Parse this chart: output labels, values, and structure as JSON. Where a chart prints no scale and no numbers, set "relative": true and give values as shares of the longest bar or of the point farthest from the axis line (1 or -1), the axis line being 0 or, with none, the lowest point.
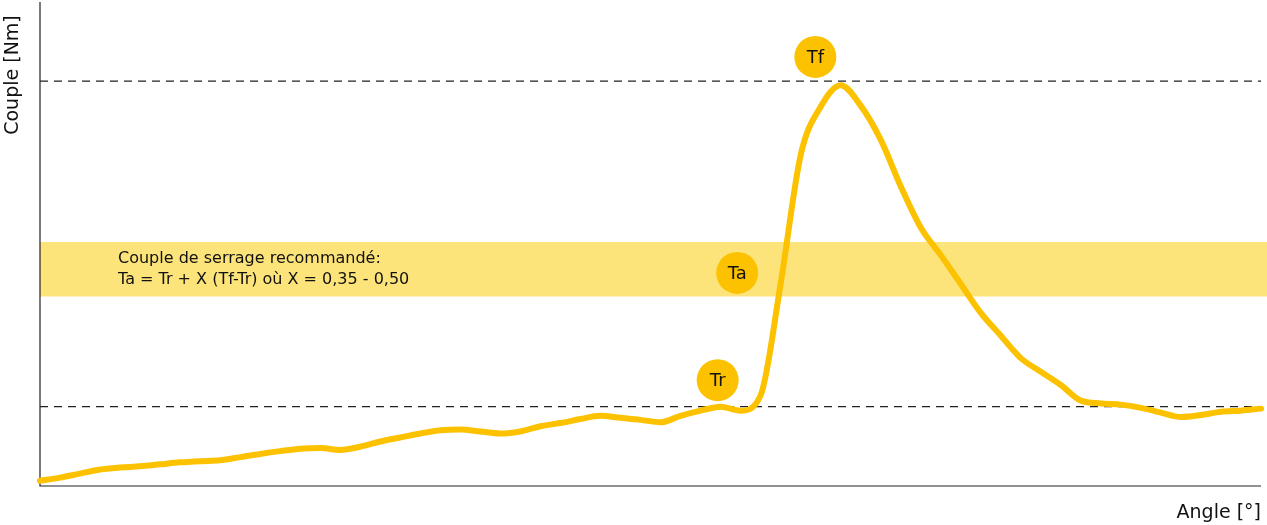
{
  "chart_data": {
    "type": "line",
    "relative": true,
    "xlabel": "Angle [°]",
    "ylabel": "Couple [Nm]",
    "legend": false,
    "marker": "none",
    "line_style": "solid",
    "categories": [
      null,
      null,
      null,
      null,
      null,
      null,
      null,
      null,
      null,
      null,
      null,
      null,
      null,
      null,
      null,
      null,
      null,
      null,
      null,
      null,
      null,
      null,
      null,
      null,
      null,
      null,
      null,
      null,
      null,
      null,
      null,
      null,
      null,
      null,
      null,
      null,
      null,
      null,
      null,
      null,
      null,
      null,
      null,
      null,
      null,
      null,
      null,
      null,
      null,
      null,
      null,
      null,
      null,
      null,
      null,
      null,
      null,
      null,
      null,
      null,
      null,
      null
    ],
    "series": [
      {
        "color": "#fcc200",
        "values": [
          0.013,
          0.021,
          0.031,
          0.041,
          0.046,
          0.049,
          0.054,
          0.059,
          0.062,
          0.064,
          0.072,
          0.08,
          0.087,
          0.093,
          0.095,
          0.09,
          0.098,
          0.111,
          0.121,
          0.131,
          0.139,
          0.141,
          0.136,
          0.131,
          0.136,
          0.149,
          0.157,
          0.167,
          0.175,
          0.17,
          0.165,
          0.159,
          0.175,
          0.188,
          0.198,
          0.188,
          0.226,
          0.504,
          0.825,
          0.946,
          1,
          0.949,
          0.864,
          0.748,
          0.645,
          0.576,
          0.504,
          0.432,
          0.375,
          0.319,
          0.285,
          0.252,
          0.213,
          0.206,
          0.203,
          0.195,
          0.183,
          0.172,
          0.177,
          0.185,
          0.188,
          0.193
        ]
      }
    ],
    "ref_lines": [
      {
        "axis": "y",
        "value": 1.01,
        "line_style": "dashed",
        "color": "#222222"
      },
      {
        "axis": "y",
        "value": 0.198,
        "line_style": "dashed",
        "color": "#222222"
      }
    ],
    "bands": [
      {
        "axis": "y",
        "from": 0.473,
        "to": 0.609,
        "color": "#fde47a",
        "label": "Couple de serrage recommandé:\nTa = Tr + X (Tf-Tr) où X = 0,35 - 0,50"
      }
    ],
    "annotations": [
      "Tf",
      "Ta",
      "Tr"
    ]
  }
}
